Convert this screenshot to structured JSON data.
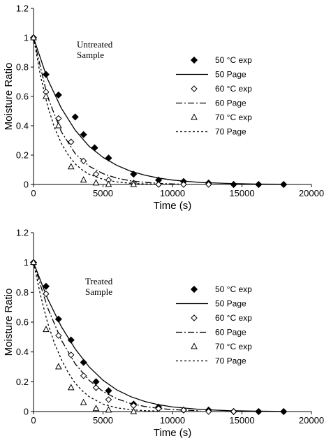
{
  "chart_data": [
    {
      "type": "scatter",
      "annotation": [
        "Untreated",
        "Sample"
      ],
      "xlabel": "Time (s)",
      "ylabel": "Moisture Ratio",
      "xlim": [
        0,
        20000
      ],
      "ylim": [
        0,
        1.2
      ],
      "xticks": [
        0,
        5000,
        10000,
        15000,
        20000
      ],
      "yticks": [
        0,
        0.2,
        0.4,
        0.6,
        0.8,
        1,
        1.2
      ],
      "xtick_labels": [
        "0",
        "5000",
        "10000",
        "15000",
        "20000"
      ],
      "ytick_labels": [
        "0",
        "0.2",
        "0.4",
        "0.6",
        "0.8",
        "1",
        "1.2"
      ],
      "grid": false,
      "legend_position": "right",
      "series": [
        {
          "name": "50 °C exp",
          "kind": "scatter",
          "marker": "diamond-filled",
          "x": [
            0,
            900,
            1800,
            3000,
            3600,
            4400,
            5400,
            7200,
            9000,
            10800,
            12600,
            14400,
            16200,
            18000
          ],
          "y": [
            1.0,
            0.75,
            0.61,
            0.46,
            0.34,
            0.25,
            0.18,
            0.07,
            0.03,
            0.02,
            0.01,
            0.0,
            0.0,
            0.0
          ]
        },
        {
          "name": "50 Page",
          "kind": "line",
          "dash": "solid",
          "x": [
            0,
            1000,
            2000,
            3000,
            4000,
            5000,
            6000,
            7000,
            8000,
            9000,
            10000,
            12000,
            14000,
            16000,
            18000
          ],
          "y": [
            1.0,
            0.72,
            0.52,
            0.37,
            0.26,
            0.185,
            0.13,
            0.09,
            0.064,
            0.044,
            0.03,
            0.014,
            0.007,
            0.003,
            0.002
          ]
        },
        {
          "name": "60 °C exp",
          "kind": "scatter",
          "marker": "diamond-open",
          "x": [
            0,
            900,
            1800,
            2700,
            3600,
            4500,
            5400,
            7200,
            9000,
            10800,
            12600
          ],
          "y": [
            1.0,
            0.63,
            0.45,
            0.29,
            0.16,
            0.07,
            0.03,
            0.01,
            0.0,
            0.0,
            0.0
          ]
        },
        {
          "name": "60 Page",
          "kind": "line",
          "dash": "dashdot",
          "x": [
            0,
            1000,
            2000,
            3000,
            4000,
            5000,
            6000,
            7000,
            8000,
            9000,
            10000,
            11000
          ],
          "y": [
            1.0,
            0.6,
            0.36,
            0.21,
            0.125,
            0.074,
            0.043,
            0.025,
            0.015,
            0.008,
            0.004,
            0.002
          ]
        },
        {
          "name": "70 °C exp",
          "kind": "scatter",
          "marker": "triangle-open",
          "x": [
            0,
            900,
            1800,
            2700,
            3600,
            4500,
            5400,
            7200
          ],
          "y": [
            1.0,
            0.6,
            0.4,
            0.12,
            0.03,
            0.01,
            0.0,
            0.0
          ]
        },
        {
          "name": "70 Page",
          "kind": "line",
          "dash": "dotted",
          "x": [
            0,
            500,
            1000,
            1500,
            2000,
            2500,
            3000,
            3500,
            4000,
            5000,
            6000,
            7000,
            8000,
            9000
          ],
          "y": [
            1.0,
            0.74,
            0.54,
            0.39,
            0.28,
            0.2,
            0.14,
            0.1,
            0.07,
            0.035,
            0.017,
            0.008,
            0.004,
            0.002
          ]
        }
      ]
    },
    {
      "type": "scatter",
      "annotation": [
        "Treated",
        "Sample"
      ],
      "xlabel": "Time (s)",
      "ylabel": "Moisture Ratio",
      "xlim": [
        0,
        20000
      ],
      "ylim": [
        0,
        1.2
      ],
      "xticks": [
        0,
        5000,
        10000,
        15000,
        20000
      ],
      "yticks": [
        0,
        0.2,
        0.4,
        0.6,
        0.8,
        1,
        1.2
      ],
      "xtick_labels": [
        "0",
        "5000",
        "10000",
        "15000",
        "20000"
      ],
      "ytick_labels": [
        "0",
        "0.2",
        "0.4",
        "0.6",
        "0.8",
        "1",
        "1.2"
      ],
      "grid": false,
      "legend_position": "right",
      "series": [
        {
          "name": "50 °C exp",
          "kind": "scatter",
          "marker": "diamond-filled",
          "x": [
            0,
            900,
            1800,
            2700,
            3600,
            4500,
            5400,
            7200,
            9000,
            10800,
            12600,
            14400,
            16200,
            18000
          ],
          "y": [
            1.0,
            0.84,
            0.62,
            0.48,
            0.33,
            0.2,
            0.14,
            0.05,
            0.03,
            0.01,
            0.01,
            0.0,
            0.0,
            0.0
          ]
        },
        {
          "name": "50 Page",
          "kind": "line",
          "dash": "solid",
          "x": [
            0,
            1000,
            2000,
            3000,
            4000,
            5000,
            6000,
            7000,
            8000,
            9000,
            10000,
            12000,
            14000,
            16000,
            18000
          ],
          "y": [
            1.0,
            0.76,
            0.57,
            0.42,
            0.3,
            0.21,
            0.145,
            0.1,
            0.068,
            0.046,
            0.031,
            0.014,
            0.006,
            0.003,
            0.001
          ]
        },
        {
          "name": "60 °C exp",
          "kind": "scatter",
          "marker": "diamond-open",
          "x": [
            0,
            900,
            1800,
            2700,
            3600,
            4500,
            5400,
            7200,
            9000,
            10800,
            12600,
            14400
          ],
          "y": [
            1.0,
            0.79,
            0.51,
            0.38,
            0.24,
            0.16,
            0.08,
            0.04,
            0.02,
            0.01,
            0.0,
            0.0
          ]
        },
        {
          "name": "60 Page",
          "kind": "line",
          "dash": "dashdot",
          "x": [
            0,
            1000,
            2000,
            3000,
            4000,
            5000,
            6000,
            7000,
            8000,
            9000,
            10000,
            12000
          ],
          "y": [
            1.0,
            0.7,
            0.48,
            0.32,
            0.21,
            0.135,
            0.086,
            0.054,
            0.034,
            0.021,
            0.013,
            0.005
          ]
        },
        {
          "name": "70 °C exp",
          "kind": "scatter",
          "marker": "triangle-open",
          "x": [
            0,
            900,
            1800,
            2700,
            3600,
            4500,
            5400,
            7200
          ],
          "y": [
            1.0,
            0.55,
            0.3,
            0.16,
            0.06,
            0.02,
            0.01,
            0.0
          ]
        },
        {
          "name": "70 Page",
          "kind": "line",
          "dash": "dotted",
          "x": [
            0,
            500,
            1000,
            1500,
            2000,
            2500,
            3000,
            3500,
            4000,
            5000,
            6000,
            7000,
            8000,
            9000
          ],
          "y": [
            1.0,
            0.78,
            0.6,
            0.46,
            0.35,
            0.26,
            0.19,
            0.14,
            0.1,
            0.05,
            0.025,
            0.012,
            0.006,
            0.003
          ]
        }
      ]
    }
  ]
}
